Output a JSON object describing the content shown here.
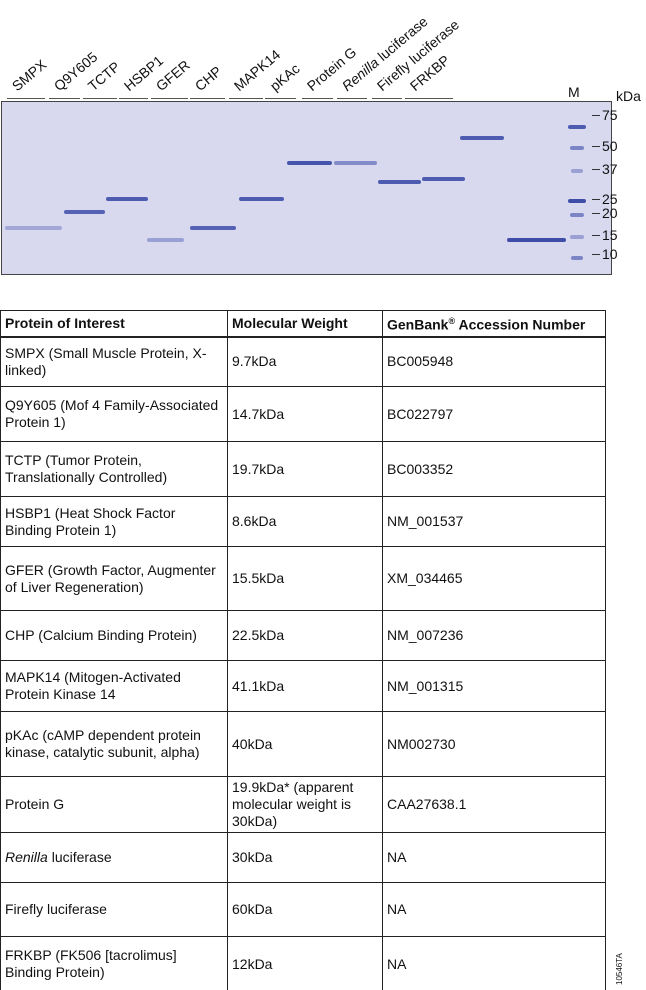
{
  "gel": {
    "lanes": [
      "SMPX",
      "Q9Y605",
      "TCTP",
      "HSBP1",
      "GFER",
      "CHP",
      "MAPK14",
      "pKAc",
      "Protein G",
      "Renilla luciferase",
      "Firefly luciferase",
      "FRKBP"
    ],
    "lane_italic_prefix": {
      "Renilla luciferase": "Renilla"
    },
    "marker_label": "M",
    "unit_label": "kDa",
    "marker_ticks": [
      "75",
      "50",
      "37",
      "25",
      "20",
      "15",
      "10"
    ],
    "band_color": "#3e4ea8",
    "background_color": "#d8d8ef"
  },
  "table": {
    "headers": [
      "Protein of Interest",
      "Molecular Weight",
      "GenBank® Accession Number"
    ],
    "rows": [
      {
        "protein": "SMPX (Small Muscle Protein, X-linked)",
        "mw": "9.7kDa",
        "acc": "BC005948"
      },
      {
        "protein": "Q9Y605 (Mof 4 Family-Associated Protein 1)",
        "mw": "14.7kDa",
        "acc": "BC022797"
      },
      {
        "protein": "TCTP (Tumor Protein, Translationally Controlled)",
        "mw": "19.7kDa",
        "acc": "BC003352"
      },
      {
        "protein": "HSBP1 (Heat Shock Factor Binding Protein 1)",
        "mw": "8.6kDa",
        "acc": "NM_001537"
      },
      {
        "protein": "GFER (Growth Factor, Augmenter of Liver Regeneration)",
        "mw": "15.5kDa",
        "acc": "XM_034465"
      },
      {
        "protein": "CHP (Calcium Binding Protein)",
        "mw": "22.5kDa",
        "acc": "NM_007236"
      },
      {
        "protein": "MAPK14 (Mitogen-Activated Protein Kinase 14",
        "mw": "41.1kDa",
        "acc": "NM_001315"
      },
      {
        "protein": "pKAc (cAMP dependent protein kinase, catalytic subunit, alpha)",
        "mw": "40kDa",
        "acc": "NM002730"
      },
      {
        "protein": "Protein G",
        "mw": "19.9kDa* (apparent molecular weight is 30kDa)",
        "acc": "CAA27638.1"
      },
      {
        "protein": "Renilla luciferase",
        "mw": "30kDa",
        "acc": "NA"
      },
      {
        "protein": "Firefly luciferase",
        "mw": "60kDa",
        "acc": "NA"
      },
      {
        "protein": "FRKBP (FK506 [tacrolimus] Binding Protein)",
        "mw": "12kDa",
        "acc": "NA"
      }
    ]
  },
  "figure_code": "10546TA"
}
